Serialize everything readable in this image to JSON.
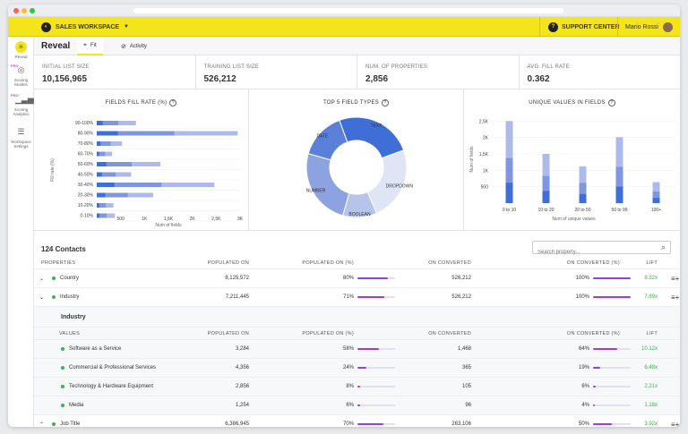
{
  "topbar": {
    "workspace": "SALES WORKSPACE",
    "support": "SUPPORT CENTER",
    "user": "Mario Rossi"
  },
  "sidebar": {
    "items": [
      {
        "label": "Reveal",
        "icon": "bulb-icon",
        "pro": false
      },
      {
        "label": "Scoring Models",
        "icon": "target-icon",
        "pro": true
      },
      {
        "label": "Scoring Analytics",
        "icon": "bar-chart-icon",
        "pro": true
      },
      {
        "label": "Workspace Settings",
        "icon": "sliders-icon",
        "pro": false
      }
    ],
    "pro_badge": "PRO"
  },
  "header": {
    "title": "Reveal",
    "tabs": [
      {
        "label": "Fit"
      },
      {
        "label": "Activity"
      }
    ]
  },
  "stats": [
    {
      "label": "INITIAL LIST SIZE",
      "value": "10,156,965"
    },
    {
      "label": "TRAINING LIST SIZE",
      "value": "526,212"
    },
    {
      "label": "NUM. OF PROPERTIES",
      "value": "2,856"
    },
    {
      "label": "AVG. FILL RATE",
      "value": "0.362"
    }
  ],
  "chart_data": [
    {
      "type": "bar",
      "orientation": "horizontal",
      "title": "FIELDS FILL RATE (%)",
      "xlabel": "Num of fields",
      "ylabel": "Fill rate (%)",
      "categories": [
        "90-100%",
        "80-90%",
        "70-80%",
        "60-70%",
        "50-60%",
        "40-50%",
        "30-40%",
        "20-30%",
        "10-20%",
        "0-10%"
      ],
      "values": [
        820,
        2950,
        530,
        320,
        1330,
        720,
        2460,
        1180,
        350,
        380
      ],
      "xticks": [
        "500",
        "1K",
        "1,5K",
        "2K",
        "2,5K",
        "3K"
      ],
      "xlim": [
        0,
        3000
      ]
    },
    {
      "type": "pie",
      "title": "TOP 5 FIELD TYPES",
      "labels": [
        "TEXT",
        "DROPDOWN",
        "BOOLEAN",
        "NUMBER",
        "DATE"
      ],
      "values": [
        25,
        24,
        11,
        25,
        15
      ],
      "colors": [
        "#3f6fd6",
        "#dfe5f5",
        "#b7c4ea",
        "#8da3e1",
        "#5b80d9"
      ]
    },
    {
      "type": "bar",
      "title": "UNIQUE VALUES IN FIELDS",
      "xlabel": "Num of unique values",
      "ylabel": "Num of fields",
      "categories": [
        "0 to 10",
        "10 to 20",
        "20 to 50",
        "50 to 99",
        "100+"
      ],
      "values": [
        2500,
        1500,
        1120,
        2010,
        640
      ],
      "yticks": [
        "500",
        "1K",
        "1,5K",
        "2K",
        "2,5K"
      ],
      "ylim": [
        0,
        2700
      ]
    }
  ],
  "contacts": {
    "title": "124 Contacts",
    "search_placeholder": "Search property..."
  },
  "table": {
    "headers": [
      "PROPERTIES",
      "POPULATED ON",
      "POPULATED ON (%)",
      "ON CONVERTED",
      "ON CONVERTED (%)",
      "LIFT"
    ],
    "sub_headers": [
      "VALUES",
      "POPULATED ON",
      "POPULATED ON (%)",
      "ON CONVERTED",
      "ON CONVERTED (%)",
      "LIFT"
    ],
    "section_title": "Industry",
    "rows": [
      {
        "name": "Country",
        "populated": "8,125,572",
        "pop_pct": "80%",
        "pop_frac": 0.8,
        "converted": "526,212",
        "conv_pct": "100%",
        "conv_frac": 1.0,
        "lift": "8.32x"
      },
      {
        "name": "Industry",
        "populated": "7,211,445",
        "pop_pct": "71%",
        "pop_frac": 0.71,
        "converted": "526,212",
        "conv_pct": "100%",
        "conv_frac": 1.0,
        "lift": "7.89x"
      }
    ],
    "sub_rows": [
      {
        "name": "Software as a Service",
        "populated": "3,284",
        "pop_pct": "58%",
        "pop_frac": 0.58,
        "converted": "1,468",
        "conv_pct": "64%",
        "conv_frac": 0.64,
        "lift": "10.12x"
      },
      {
        "name": "Commercial & Professional Services",
        "populated": "4,356",
        "pop_pct": "24%",
        "pop_frac": 0.24,
        "converted": "365",
        "conv_pct": "19%",
        "conv_frac": 0.19,
        "lift": "6.48x"
      },
      {
        "name": "Technology & Hardware Equipment",
        "populated": "2,856",
        "pop_pct": "8%",
        "pop_frac": 0.08,
        "converted": "105",
        "conv_pct": "6%",
        "conv_frac": 0.06,
        "lift": "2.21x"
      },
      {
        "name": "Media",
        "populated": "1,254",
        "pop_pct": "6%",
        "pop_frac": 0.06,
        "converted": "96",
        "conv_pct": "4%",
        "conv_frac": 0.04,
        "lift": "1.18x"
      }
    ],
    "last_row": {
      "name": "Job Title",
      "populated": "6,386,945",
      "pop_pct": "70%",
      "pop_frac": 0.7,
      "converted": "263,106",
      "conv_pct": "50%",
      "conv_frac": 0.5,
      "lift": "3.92x"
    }
  }
}
